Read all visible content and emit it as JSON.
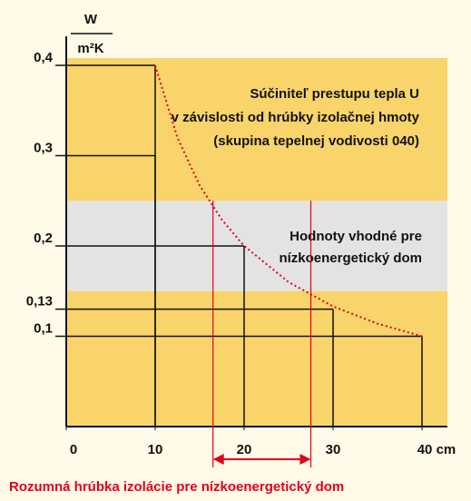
{
  "chart_data": {
    "type": "line",
    "y_unit_top": "W",
    "y_unit_bottom": "m²K",
    "x": [
      10,
      12.5,
      15,
      17.5,
      20,
      25,
      30,
      35,
      40
    ],
    "series": [
      {
        "name": "Súčiniteľ prestupu tepla U",
        "color": "#e2001a",
        "values": [
          0.4,
          0.32,
          0.267,
          0.229,
          0.2,
          0.16,
          0.133,
          0.114,
          0.1
        ]
      }
    ],
    "xlim": [
      0,
      40
    ],
    "xticks": [
      0,
      10,
      20,
      30,
      {
        "value": 40,
        "label": "40 cm"
      }
    ],
    "ylim": [
      0,
      0.4
    ],
    "yticks": [
      {
        "value": 0.1,
        "label": "0,1"
      },
      {
        "value": 0.13,
        "label": "0,13"
      },
      {
        "value": 0.2,
        "label": "0,2"
      },
      {
        "value": 0.3,
        "label": "0,3"
      },
      {
        "value": 0.4,
        "label": "0,4"
      }
    ],
    "guides": [
      {
        "x": 10,
        "y": 0.4
      },
      {
        "x": 10,
        "y": 0.3
      },
      {
        "x": 20,
        "y": 0.2
      },
      {
        "x": 30,
        "y": 0.13
      },
      {
        "x": 40,
        "y": 0.1
      }
    ],
    "band": {
      "range": [
        0.15,
        0.25
      ],
      "lines": [
        "Hodnoty vhodné pre",
        "nízkoenergetický dom"
      ]
    },
    "title_lines": [
      "Súčiniteľ prestupu tepla U",
      "v závislosti od hrúbky izolačnej hmoty",
      "(skupina tepelnej vodivosti 040)"
    ],
    "range_x": [
      16.5,
      27.5
    ],
    "caption": "Rozumná hrúbka izolácie pre nízkoenergetický dom"
  }
}
